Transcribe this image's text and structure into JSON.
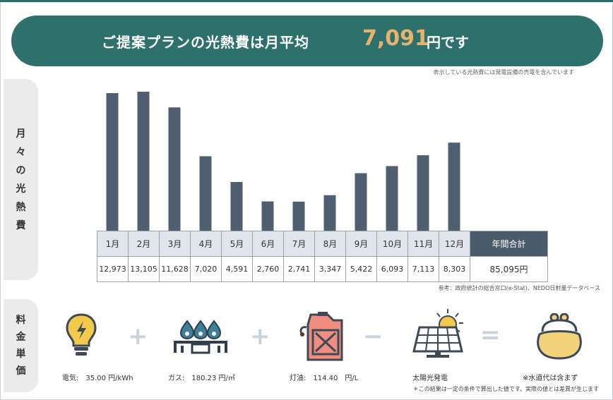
{
  "banner": {
    "lead": "ご提案プランの光熱費は月平均",
    "amount": "7,091",
    "unit": "円です"
  },
  "note_top": "表示している光熱費には発電設備の売電を含んでいます",
  "side_labels": {
    "monthly": [
      "月",
      "々",
      "の",
      "光",
      "熱",
      "費"
    ],
    "price": [
      "料",
      "金",
      "単",
      "価"
    ]
  },
  "colors": {
    "banner_bg": "#2e716c",
    "amount": "#e8b26b",
    "bar": "#4f5f6f",
    "total_header": "#4a5b6a",
    "month_header": "#dfe5ea"
  },
  "chart_data": {
    "type": "bar",
    "categories": [
      "1月",
      "2月",
      "3月",
      "4月",
      "5月",
      "6月",
      "7月",
      "8月",
      "9月",
      "10月",
      "11月",
      "12月"
    ],
    "values": [
      12973,
      13105,
      11628,
      7020,
      4591,
      2760,
      2741,
      3347,
      5422,
      6093,
      7113,
      8303
    ],
    "value_labels": [
      "12,973",
      "13,105",
      "11,628",
      "7,020",
      "4,591",
      "2,760",
      "2,741",
      "3,347",
      "5,422",
      "6,093",
      "7,113",
      "8,303"
    ],
    "ylim": [
      0,
      14000
    ],
    "grid": false,
    "total_label": "年間合計",
    "total_value": "85,095円"
  },
  "source_note": "参考：政府統計の総合窓口(e-Stat)、NEDO日射量データベース",
  "prices": {
    "electricity": {
      "label": "電気:",
      "value": "35.00 円/kWh",
      "icon": "light-bulb-icon"
    },
    "gas": {
      "label": "ガス:",
      "value": "180.23 円/㎥",
      "icon": "gas-burner-icon"
    },
    "kerosene": {
      "label": "灯油:",
      "value": "114.40　円/L",
      "icon": "fuel-can-icon"
    },
    "solar": {
      "label": "太陽光発電",
      "icon": "solar-panel-icon"
    },
    "water": {
      "label": "※水道代は含まず",
      "icon": "purse-icon"
    },
    "operators": [
      "+",
      "+",
      "−",
      "="
    ]
  },
  "footnote": "＊この結果は一定の条件で算出した値です。実際の値とは差異が生じます"
}
